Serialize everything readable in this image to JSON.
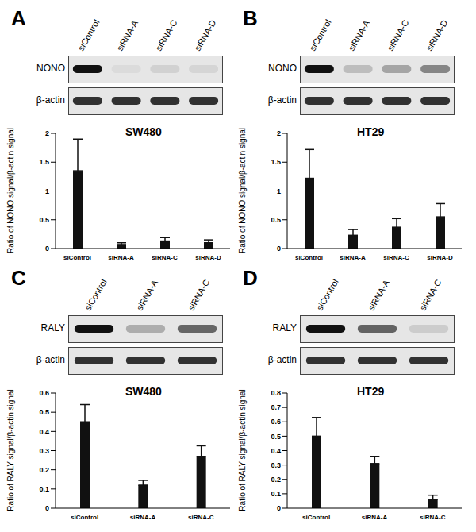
{
  "chart_data": [
    {
      "type": "bar",
      "panel": "A",
      "title": "SW480",
      "blot_rows": [
        "NONO",
        "β-actin"
      ],
      "y_label": "Ratio of NONO signal/β-actin signal",
      "categories": [
        "siControl",
        "siRNA-A",
        "siRNA-C",
        "siRNA-D"
      ],
      "values": [
        1.35,
        0.07,
        0.13,
        0.1
      ],
      "errors": [
        0.55,
        0.03,
        0.06,
        0.05
      ],
      "color": "#111111",
      "ylim": [
        0,
        2
      ],
      "yticks": [
        0,
        0.5,
        1,
        1.5,
        2
      ]
    },
    {
      "type": "bar",
      "panel": "B",
      "title": "HT29",
      "blot_rows": [
        "NONO",
        "β-actin"
      ],
      "y_label": "Ratio of NONO signal/β-actin signal",
      "categories": [
        "siControl",
        "siRNA-A",
        "siRNA-C",
        "siRNA-D"
      ],
      "values": [
        1.22,
        0.23,
        0.37,
        0.55
      ],
      "errors": [
        0.5,
        0.1,
        0.15,
        0.23
      ],
      "color": "#111111",
      "ylim": [
        0,
        2
      ],
      "yticks": [
        0,
        0.5,
        1,
        1.5,
        2
      ]
    },
    {
      "type": "bar",
      "panel": "C",
      "title": "SW480",
      "blot_rows": [
        "RALY",
        "β-actin"
      ],
      "y_label": "Ratio of RALY signal/β-actin signal",
      "categories": [
        "siControl",
        "siRNA-A",
        "siRNA-C"
      ],
      "values": [
        0.45,
        0.12,
        0.27
      ],
      "errors": [
        0.09,
        0.025,
        0.055
      ],
      "color": "#111111",
      "ylim": [
        0,
        0.6
      ],
      "yticks": [
        0,
        0.1,
        0.2,
        0.3,
        0.4,
        0.5,
        0.6
      ]
    },
    {
      "type": "bar",
      "panel": "D",
      "title": "HT29",
      "blot_rows": [
        "RALY",
        "β-actin"
      ],
      "y_label": "Ratio of RALY signal/β-actin signal",
      "categories": [
        "siControl",
        "siRNA-A",
        "siRNA-C"
      ],
      "values": [
        0.5,
        0.31,
        0.06
      ],
      "errors": [
        0.13,
        0.05,
        0.03
      ],
      "color": "#111111",
      "ylim": [
        0,
        0.8
      ],
      "yticks": [
        0,
        0.1,
        0.2,
        0.3,
        0.4,
        0.5,
        0.6,
        0.7,
        0.8
      ]
    }
  ]
}
